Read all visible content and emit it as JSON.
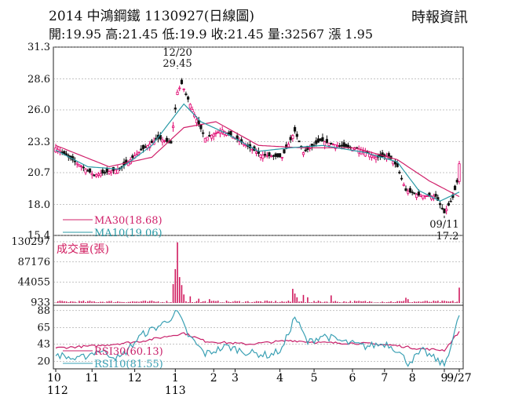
{
  "header": {
    "title": "2014  中鴻鋼鐵 1130927(日線圖)",
    "source": "時報資訊",
    "ohlc": "開:19.95 高:21.45 低:19.9 收:21.45 量:32567 漲 1.95"
  },
  "colors": {
    "up_candle": "#e0006e",
    "down_candle": "#111111",
    "ma30": "#d0206a",
    "ma10": "#2a9aa6",
    "volume": "#d01a5e",
    "rsi30": "#c8206a",
    "rsi10": "#3aa0b4",
    "grid": "#888888"
  },
  "chart_data": [
    {
      "type": "candlestick",
      "panel": "price",
      "ylim": [
        15.4,
        31.3
      ],
      "yticks": [
        "31.3",
        "28.6",
        "26.0",
        "23.3",
        "20.7",
        "18.0",
        "15.4"
      ],
      "series": [
        {
          "name": "MA30(18.68)",
          "legend": "MA30(18.68)"
        },
        {
          "name": "MA10(19.06)",
          "legend": "MA10(19.06)"
        }
      ],
      "annotations": [
        {
          "label": "12/20",
          "value_label": "29.45",
          "value": 29.45
        },
        {
          "label": "09/11",
          "value_label": "17.2",
          "value": 17.2
        }
      ],
      "keypoints": [
        {
          "i": 0,
          "v": 22.8
        },
        {
          "i": 10,
          "v": 21.5
        },
        {
          "i": 18,
          "v": 20.5
        },
        {
          "i": 30,
          "v": 21.0
        },
        {
          "i": 40,
          "v": 22.6
        },
        {
          "i": 48,
          "v": 23.6
        },
        {
          "i": 54,
          "v": 23.2
        },
        {
          "i": 57,
          "v": 27.5
        },
        {
          "i": 59,
          "v": 28.2
        },
        {
          "i": 65,
          "v": 25.6
        },
        {
          "i": 70,
          "v": 23.6
        },
        {
          "i": 78,
          "v": 24.3
        },
        {
          "i": 86,
          "v": 23.4
        },
        {
          "i": 96,
          "v": 22.2
        },
        {
          "i": 106,
          "v": 22.0
        },
        {
          "i": 112,
          "v": 24.2
        },
        {
          "i": 116,
          "v": 22.4
        },
        {
          "i": 124,
          "v": 23.4
        },
        {
          "i": 132,
          "v": 23.0
        },
        {
          "i": 142,
          "v": 22.7
        },
        {
          "i": 150,
          "v": 22.0
        },
        {
          "i": 156,
          "v": 22.1
        },
        {
          "i": 160,
          "v": 21.2
        },
        {
          "i": 164,
          "v": 19.2
        },
        {
          "i": 170,
          "v": 18.8
        },
        {
          "i": 178,
          "v": 18.7
        },
        {
          "i": 182,
          "v": 17.3
        },
        {
          "i": 186,
          "v": 18.6
        },
        {
          "i": 188,
          "v": 19.9
        },
        {
          "i": 189,
          "v": 21.45
        }
      ],
      "ma30_keypoints": [
        {
          "i": 0,
          "v": 23.0
        },
        {
          "i": 25,
          "v": 21.2
        },
        {
          "i": 45,
          "v": 22.0
        },
        {
          "i": 60,
          "v": 24.5
        },
        {
          "i": 75,
          "v": 25.0
        },
        {
          "i": 95,
          "v": 23.0
        },
        {
          "i": 115,
          "v": 22.8
        },
        {
          "i": 140,
          "v": 22.8
        },
        {
          "i": 160,
          "v": 21.8
        },
        {
          "i": 175,
          "v": 20.0
        },
        {
          "i": 189,
          "v": 18.68
        }
      ],
      "ma10_keypoints": [
        {
          "i": 0,
          "v": 22.6
        },
        {
          "i": 15,
          "v": 21.2
        },
        {
          "i": 30,
          "v": 21.0
        },
        {
          "i": 45,
          "v": 23.0
        },
        {
          "i": 60,
          "v": 26.5
        },
        {
          "i": 68,
          "v": 25.0
        },
        {
          "i": 80,
          "v": 24.0
        },
        {
          "i": 95,
          "v": 22.5
        },
        {
          "i": 110,
          "v": 22.8
        },
        {
          "i": 125,
          "v": 23.0
        },
        {
          "i": 145,
          "v": 22.4
        },
        {
          "i": 160,
          "v": 21.6
        },
        {
          "i": 170,
          "v": 19.2
        },
        {
          "i": 180,
          "v": 18.3
        },
        {
          "i": 189,
          "v": 19.06
        }
      ]
    },
    {
      "type": "bar",
      "panel": "volume",
      "ylabel": "成交量(張)",
      "ylim": [
        0,
        130297
      ],
      "yticks": [
        "130297",
        "87176",
        "44055",
        "933"
      ],
      "spikes": [
        {
          "i": 55,
          "v": 40000
        },
        {
          "i": 56,
          "v": 72000
        },
        {
          "i": 57,
          "v": 129000
        },
        {
          "i": 58,
          "v": 55000
        },
        {
          "i": 59,
          "v": 38000
        },
        {
          "i": 60,
          "v": 18000
        },
        {
          "i": 63,
          "v": 14000
        },
        {
          "i": 67,
          "v": 9000
        },
        {
          "i": 72,
          "v": 8000
        },
        {
          "i": 111,
          "v": 30000
        },
        {
          "i": 112,
          "v": 20000
        },
        {
          "i": 113,
          "v": 12000
        },
        {
          "i": 116,
          "v": 17000
        },
        {
          "i": 118,
          "v": 12000
        },
        {
          "i": 129,
          "v": 16000
        },
        {
          "i": 164,
          "v": 11000
        },
        {
          "i": 165,
          "v": 8000
        },
        {
          "i": 189,
          "v": 32567
        }
      ]
    },
    {
      "type": "line",
      "panel": "rsi",
      "ylim": [
        10,
        92
      ],
      "yticks": [
        "88",
        "65",
        "43",
        "20"
      ],
      "series": [
        {
          "name": "RSI30(60.13)",
          "legend": "RSI30(60.13)",
          "keypoints": [
            {
              "i": 0,
              "v": 38
            },
            {
              "i": 20,
              "v": 41
            },
            {
              "i": 40,
              "v": 47
            },
            {
              "i": 55,
              "v": 55
            },
            {
              "i": 60,
              "v": 58
            },
            {
              "i": 70,
              "v": 47
            },
            {
              "i": 90,
              "v": 43
            },
            {
              "i": 110,
              "v": 48
            },
            {
              "i": 125,
              "v": 45
            },
            {
              "i": 145,
              "v": 44
            },
            {
              "i": 160,
              "v": 41
            },
            {
              "i": 170,
              "v": 37
            },
            {
              "i": 182,
              "v": 35
            },
            {
              "i": 189,
              "v": 60.13
            }
          ]
        },
        {
          "name": "RSI10(81.55)",
          "legend": "RSI10(81.55)",
          "keypoints": [
            {
              "i": 0,
              "v": 30
            },
            {
              "i": 10,
              "v": 22
            },
            {
              "i": 20,
              "v": 35
            },
            {
              "i": 30,
              "v": 24
            },
            {
              "i": 40,
              "v": 55
            },
            {
              "i": 50,
              "v": 70
            },
            {
              "i": 57,
              "v": 86
            },
            {
              "i": 62,
              "v": 55
            },
            {
              "i": 70,
              "v": 30
            },
            {
              "i": 80,
              "v": 40
            },
            {
              "i": 90,
              "v": 32
            },
            {
              "i": 100,
              "v": 28
            },
            {
              "i": 106,
              "v": 36
            },
            {
              "i": 112,
              "v": 80
            },
            {
              "i": 118,
              "v": 45
            },
            {
              "i": 125,
              "v": 55
            },
            {
              "i": 135,
              "v": 46
            },
            {
              "i": 145,
              "v": 40
            },
            {
              "i": 155,
              "v": 44
            },
            {
              "i": 160,
              "v": 35
            },
            {
              "i": 165,
              "v": 18
            },
            {
              "i": 172,
              "v": 34
            },
            {
              "i": 182,
              "v": 15
            },
            {
              "i": 186,
              "v": 50
            },
            {
              "i": 189,
              "v": 81.55
            }
          ]
        }
      ]
    }
  ],
  "x_axis": {
    "count": 190,
    "ticks": [
      {
        "i": 0,
        "label": "10",
        "sub": "112"
      },
      {
        "i": 17,
        "label": "11"
      },
      {
        "i": 37,
        "label": "12"
      },
      {
        "i": 56,
        "label": "1",
        "sub": "113"
      },
      {
        "i": 74,
        "label": "2"
      },
      {
        "i": 84,
        "label": "3"
      },
      {
        "i": 105,
        "label": "4"
      },
      {
        "i": 121,
        "label": "5"
      },
      {
        "i": 139,
        "label": "6"
      },
      {
        "i": 154,
        "label": "7"
      },
      {
        "i": 167,
        "label": "8"
      },
      {
        "i": 182,
        "label": "9"
      },
      {
        "i": 189,
        "label": "9/27"
      }
    ]
  }
}
